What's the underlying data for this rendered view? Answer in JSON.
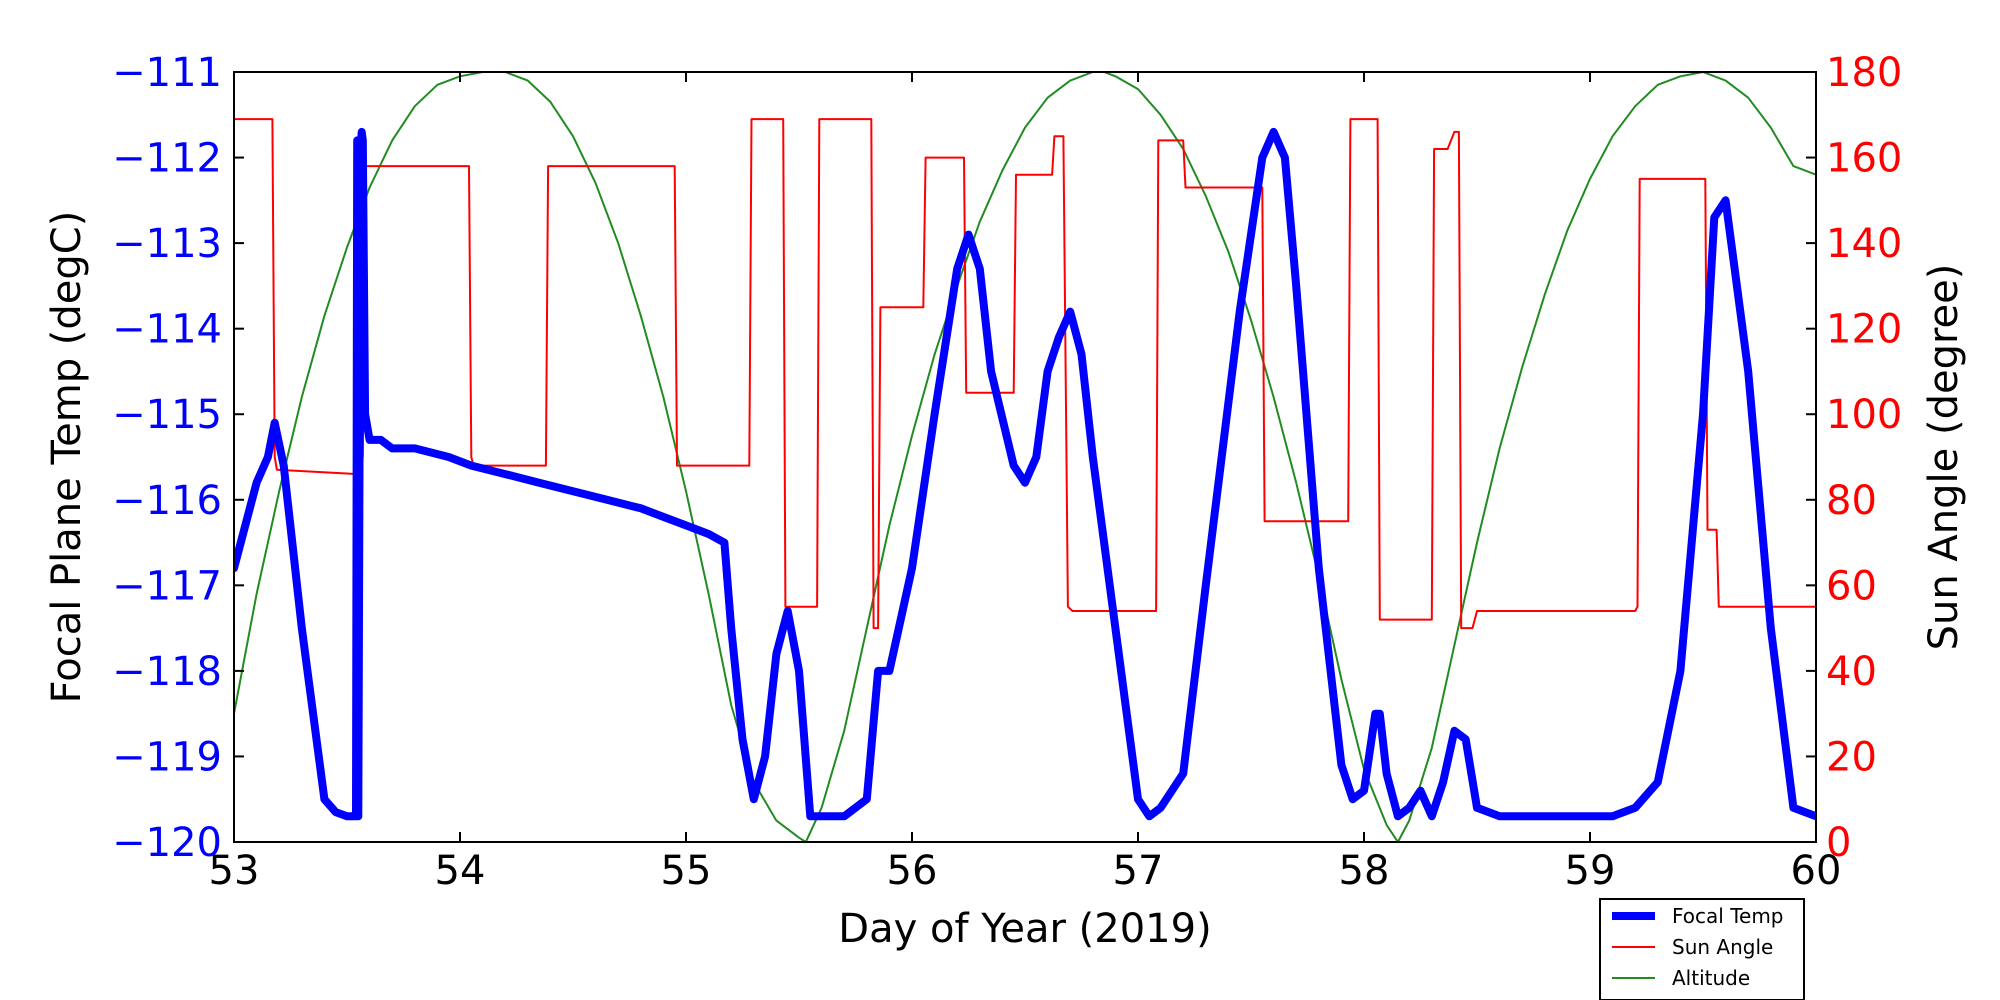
{
  "chart_data": {
    "type": "line",
    "xlabel": "Day of Year (2019)",
    "ylabel_left": "Focal Plane Temp (degC)",
    "ylabel_right": "Sun Angle (degree)",
    "xlim": [
      53,
      60
    ],
    "ylim_left": [
      -120,
      -111
    ],
    "ylim_right": [
      0,
      180
    ],
    "xticks": [
      53,
      54,
      55,
      56,
      57,
      58,
      59,
      60
    ],
    "xtick_labels": [
      "53",
      "54",
      "55",
      "56",
      "57",
      "58",
      "59",
      "60"
    ],
    "yticks_left": [
      -111,
      -112,
      -113,
      -114,
      -115,
      -116,
      -117,
      -118,
      -119,
      -120
    ],
    "ytick_labels_left": [
      "−111",
      "−112",
      "−113",
      "−114",
      "−115",
      "−116",
      "−117",
      "−118",
      "−119",
      "−120"
    ],
    "yticks_right": [
      180,
      160,
      140,
      120,
      100,
      80,
      60,
      40,
      20,
      0
    ],
    "ytick_labels_right": [
      "180",
      "160",
      "140",
      "120",
      "100",
      "80",
      "60",
      "40",
      "20",
      "0"
    ],
    "colors": {
      "focal": "#0000ff",
      "sun": "#ff0000",
      "altitude": "#228b22",
      "left_axis": "#0000ff",
      "right_axis": "#ff0000"
    },
    "legend": {
      "location": "lower-right-outside",
      "entries": [
        "Focal Temp",
        "Sun Angle",
        "Altitude"
      ]
    },
    "series": [
      {
        "name": "Focal Temp",
        "axis": "left",
        "x": [
          53.0,
          53.05,
          53.1,
          53.15,
          53.18,
          53.22,
          53.3,
          53.4,
          53.45,
          53.5,
          53.54,
          53.545,
          53.55,
          53.56,
          53.565,
          53.57,
          53.58,
          53.6,
          53.65,
          53.7,
          53.8,
          53.95,
          54.05,
          54.2,
          54.35,
          54.5,
          54.65,
          54.8,
          54.9,
          55.0,
          55.1,
          55.17,
          55.2,
          55.25,
          55.3,
          55.35,
          55.4,
          55.45,
          55.5,
          55.55,
          55.6,
          55.7,
          55.8,
          55.85,
          55.9,
          56.0,
          56.1,
          56.2,
          56.25,
          56.3,
          56.35,
          56.45,
          56.5,
          56.55,
          56.6,
          56.65,
          56.7,
          56.75,
          56.8,
          56.9,
          57.0,
          57.05,
          57.1,
          57.2,
          57.3,
          57.45,
          57.55,
          57.6,
          57.65,
          57.7,
          57.8,
          57.9,
          57.95,
          58.0,
          58.05,
          58.07,
          58.1,
          58.15,
          58.2,
          58.25,
          58.3,
          58.35,
          58.4,
          58.45,
          58.5,
          58.6,
          58.8,
          59.0,
          59.1,
          59.2,
          59.3,
          59.4,
          59.5,
          59.55,
          59.6,
          59.7,
          59.8,
          59.9,
          60.0
        ],
        "y": [
          -116.8,
          -116.3,
          -115.8,
          -115.5,
          -115.1,
          -115.6,
          -117.5,
          -119.5,
          -119.65,
          -119.7,
          -119.7,
          -111.8,
          -119.7,
          -111.9,
          -111.7,
          -111.8,
          -115.0,
          -115.3,
          -115.3,
          -115.4,
          -115.4,
          -115.5,
          -115.6,
          -115.7,
          -115.8,
          -115.9,
          -116.0,
          -116.1,
          -116.2,
          -116.3,
          -116.4,
          -116.5,
          -117.5,
          -118.8,
          -119.5,
          -119.0,
          -117.8,
          -117.3,
          -118.0,
          -119.7,
          -119.7,
          -119.7,
          -119.5,
          -118.0,
          -118.0,
          -116.8,
          -115.0,
          -113.3,
          -112.9,
          -113.3,
          -114.5,
          -115.6,
          -115.8,
          -115.5,
          -114.5,
          -114.1,
          -113.8,
          -114.3,
          -115.5,
          -117.5,
          -119.5,
          -119.7,
          -119.6,
          -119.2,
          -117.0,
          -113.8,
          -112.0,
          -111.7,
          -112.0,
          -113.5,
          -116.8,
          -119.1,
          -119.5,
          -119.4,
          -118.5,
          -118.5,
          -119.2,
          -119.7,
          -119.6,
          -119.4,
          -119.7,
          -119.3,
          -118.7,
          -118.8,
          -119.6,
          -119.7,
          -119.7,
          -119.7,
          -119.7,
          -119.6,
          -119.3,
          -118.0,
          -115.0,
          -112.7,
          -112.5,
          -114.5,
          -117.5,
          -119.6,
          -119.7
        ]
      },
      {
        "name": "Sun Angle",
        "axis": "right",
        "x": [
          53.0,
          53.17,
          53.18,
          53.19,
          53.55,
          53.56,
          53.57,
          53.58,
          54.04,
          54.05,
          54.06,
          54.38,
          54.39,
          54.4,
          54.95,
          54.96,
          54.97,
          55.28,
          55.29,
          55.3,
          55.43,
          55.44,
          55.45,
          55.58,
          55.59,
          55.6,
          55.82,
          55.83,
          55.85,
          55.86,
          55.87,
          56.05,
          56.06,
          56.07,
          56.23,
          56.24,
          56.25,
          56.45,
          56.46,
          56.47,
          56.62,
          56.63,
          56.67,
          56.69,
          56.71,
          56.72,
          57.08,
          57.09,
          57.1,
          57.2,
          57.21,
          57.22,
          57.55,
          57.56,
          57.57,
          57.93,
          57.94,
          57.95,
          58.06,
          58.07,
          58.08,
          58.3,
          58.31,
          58.32,
          58.37,
          58.4,
          58.42,
          58.43,
          58.44,
          58.48,
          58.5,
          59.2,
          59.21,
          59.22,
          59.5,
          59.51,
          59.52,
          59.55,
          59.56,
          59.57,
          60.0
        ],
        "y": [
          169,
          169,
          90,
          87,
          86,
          158,
          90,
          158,
          158,
          90,
          88,
          88,
          158,
          158,
          158,
          88,
          88,
          88,
          169,
          169,
          169,
          55,
          55,
          55,
          169,
          169,
          169,
          50,
          50,
          125,
          125,
          125,
          160,
          160,
          160,
          105,
          105,
          105,
          156,
          156,
          156,
          165,
          165,
          55,
          54,
          54,
          54,
          164,
          164,
          164,
          153,
          153,
          153,
          75,
          75,
          75,
          169,
          169,
          169,
          52,
          52,
          52,
          162,
          162,
          162,
          166,
          166,
          50,
          50,
          50,
          54,
          54,
          55,
          155,
          155,
          155,
          73,
          73,
          73,
          55,
          55
        ]
      },
      {
        "name": "Altitude",
        "axis": "right",
        "x": [
          53.0,
          53.1,
          53.2,
          53.3,
          53.4,
          53.5,
          53.6,
          53.7,
          53.8,
          53.9,
          54.0,
          54.1,
          54.2,
          54.3,
          54.4,
          54.5,
          54.6,
          54.7,
          54.8,
          54.9,
          55.0,
          55.1,
          55.2,
          55.3,
          55.4,
          55.5,
          55.53,
          55.6,
          55.7,
          55.8,
          55.9,
          56.0,
          56.1,
          56.2,
          56.3,
          56.4,
          56.5,
          56.6,
          56.7,
          56.8,
          56.85,
          56.9,
          57.0,
          57.1,
          57.2,
          57.3,
          57.4,
          57.5,
          57.6,
          57.7,
          57.8,
          57.9,
          58.0,
          58.1,
          58.15,
          58.2,
          58.3,
          58.4,
          58.5,
          58.6,
          58.7,
          58.8,
          58.9,
          59.0,
          59.1,
          59.2,
          59.3,
          59.4,
          59.5,
          59.6,
          59.7,
          59.8,
          59.9,
          60.0
        ],
        "y": [
          30,
          58,
          82,
          104,
          123,
          139,
          153,
          164,
          172,
          177,
          179,
          180,
          180,
          178,
          173,
          165,
          154,
          140,
          123,
          104,
          82,
          58,
          32,
          14,
          5,
          1,
          0,
          8,
          26,
          50,
          74,
          95,
          114,
          130,
          145,
          157,
          167,
          174,
          178,
          180,
          180,
          179,
          176,
          170,
          162,
          151,
          138,
          122,
          104,
          84,
          62,
          38,
          17,
          4,
          0,
          5,
          22,
          46,
          70,
          92,
          111,
          128,
          143,
          155,
          165,
          172,
          177,
          179,
          180,
          178,
          174,
          167,
          158,
          156
        ]
      }
    ]
  }
}
